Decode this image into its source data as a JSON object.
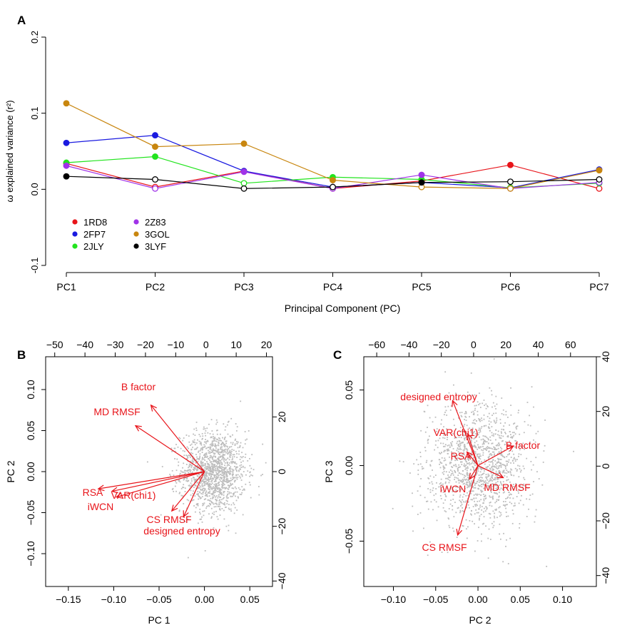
{
  "colors": {
    "red": "#e8141a",
    "blue": "#1a1ae0",
    "green": "#22e41e",
    "purple": "#a033e8",
    "orange": "#c8860f",
    "black": "#000000",
    "biplot_arrow": "#e8141a",
    "biplot_points": "#bdbdbd"
  },
  "panels": {
    "a": {
      "label": "A"
    },
    "b": {
      "label": "B"
    },
    "c": {
      "label": "C"
    }
  },
  "chart_data": [
    {
      "type": "line",
      "panel": "A",
      "xlabel": "Principal Component (PC)",
      "ylabel": "ω explained variance (r²)",
      "categories": [
        "PC1",
        "PC2",
        "PC3",
        "PC4",
        "PC5",
        "PC6",
        "PC7"
      ],
      "ylim": [
        -0.1,
        0.2
      ],
      "yticks": [
        "-0.1",
        "0.0",
        "0.1",
        "0.2"
      ],
      "grid": false,
      "legend": "bottom-left",
      "series": [
        {
          "name": "1RD8",
          "color": "red",
          "values": [
            0.034,
            0.003,
            0.024,
            0.001,
            0.011,
            0.032,
            0.001
          ],
          "filled": [
            true,
            false,
            true,
            false,
            true,
            true,
            false
          ]
        },
        {
          "name": "2FP7",
          "color": "blue",
          "values": [
            0.061,
            0.071,
            0.024,
            0.003,
            0.009,
            0.002,
            0.026
          ],
          "filled": [
            true,
            true,
            true,
            true,
            true,
            false,
            true
          ]
        },
        {
          "name": "2JLY",
          "color": "green",
          "values": [
            0.035,
            0.043,
            0.008,
            0.016,
            0.013,
            0.002,
            0.008
          ],
          "filled": [
            true,
            true,
            false,
            true,
            true,
            false,
            false
          ]
        },
        {
          "name": "2Z83",
          "color": "purple",
          "values": [
            0.031,
            0.001,
            0.023,
            0.001,
            0.019,
            0.001,
            0.009
          ],
          "filled": [
            true,
            false,
            true,
            false,
            true,
            false,
            false
          ]
        },
        {
          "name": "3GOL",
          "color": "orange",
          "values": [
            0.113,
            0.056,
            0.06,
            0.012,
            0.003,
            0.001,
            0.025
          ],
          "filled": [
            true,
            true,
            true,
            true,
            false,
            false,
            true
          ]
        },
        {
          "name": "3LYF",
          "color": "black",
          "values": [
            0.017,
            0.013,
            0.001,
            0.003,
            0.009,
            0.01,
            0.013
          ],
          "filled": [
            true,
            false,
            false,
            false,
            true,
            false,
            false
          ]
        }
      ]
    },
    {
      "type": "scatter",
      "panel": "B",
      "xlabel": "PC 1",
      "ylabel": "PC 2",
      "xlim": [
        -0.175,
        0.075
      ],
      "ylim": [
        -0.14,
        0.14
      ],
      "xticks": [
        -0.15,
        -0.1,
        -0.05,
        0.0,
        0.05
      ],
      "xticklabels": [
        "−0.15",
        "−0.10",
        "−0.05",
        "0.00",
        "0.05"
      ],
      "yticks": [
        -0.1,
        -0.05,
        0.0,
        0.05,
        0.1
      ],
      "yticklabels": [
        "−0.10",
        "−0.05",
        "0.00",
        "0.05",
        "0.10"
      ],
      "top_axis": {
        "lim": [
          -53,
          22
        ],
        "ticks": [
          -50,
          -40,
          -30,
          -20,
          -10,
          0,
          10,
          20
        ],
        "ticklabels": [
          "−50",
          "−40",
          "−30",
          "−20",
          "−10",
          "0",
          "10",
          "20"
        ]
      },
      "right_axis": {
        "lim": [
          -42,
          42
        ],
        "ticks": [
          -40,
          -20,
          0,
          20
        ],
        "ticklabels": [
          "−40",
          "−20",
          "0",
          "20"
        ]
      },
      "points": {
        "center": [
          0.01,
          0.0
        ],
        "spread": [
          0.018,
          0.025
        ],
        "count": 1400
      },
      "loadings": [
        {
          "label": "B factor",
          "x": -0.059,
          "y": 0.081
        },
        {
          "label": "MD RMSF",
          "x": -0.076,
          "y": 0.056
        },
        {
          "label": "RSA",
          "x": -0.117,
          "y": -0.021
        },
        {
          "label": "VAR(chi1)",
          "x": -0.102,
          "y": -0.024
        },
        {
          "label": "iWCN",
          "x": -0.097,
          "y": -0.031
        },
        {
          "label": "CS RMSF",
          "x": -0.036,
          "y": -0.048
        },
        {
          "label": "designed entropy",
          "x": -0.023,
          "y": -0.055
        }
      ]
    },
    {
      "type": "scatter",
      "panel": "C",
      "xlabel": "PC 2",
      "ylabel": "PC 3",
      "xlim": [
        -0.135,
        0.14
      ],
      "ylim": [
        -0.08,
        0.072
      ],
      "xticks": [
        -0.1,
        -0.05,
        0.0,
        0.05,
        0.1
      ],
      "xticklabels": [
        "−0.10",
        "−0.05",
        "0.00",
        "0.05",
        "0.10"
      ],
      "yticks": [
        -0.05,
        0.0,
        0.05
      ],
      "yticklabels": [
        "−0.05",
        "0.00",
        "0.05"
      ],
      "top_axis": {
        "lim": [
          -68,
          76
        ],
        "ticks": [
          -60,
          -40,
          -20,
          0,
          20,
          40,
          60
        ],
        "ticklabels": [
          "−60",
          "−40",
          "−20",
          "0",
          "20",
          "40",
          "60"
        ]
      },
      "right_axis": {
        "lim": [
          -44,
          40
        ],
        "ticks": [
          -40,
          -20,
          0,
          20,
          40
        ],
        "ticklabels": [
          "−40",
          "−20",
          "0",
          "20",
          "40"
        ]
      },
      "points": {
        "center": [
          0.0,
          0.0
        ],
        "spread": [
          0.03,
          0.02
        ],
        "count": 1400
      },
      "loadings": [
        {
          "label": "designed entropy",
          "x": -0.03,
          "y": 0.043
        },
        {
          "label": "VAR(chi1)",
          "x": -0.012,
          "y": 0.021
        },
        {
          "label": "RSA",
          "x": -0.013,
          "y": 0.009
        },
        {
          "label": "B factor",
          "x": 0.042,
          "y": 0.013
        },
        {
          "label": "MD RMSF",
          "x": 0.03,
          "y": -0.008
        },
        {
          "label": "iWCN",
          "x": -0.01,
          "y": -0.009
        },
        {
          "label": "CS RMSF",
          "x": -0.024,
          "y": -0.046
        }
      ]
    }
  ]
}
